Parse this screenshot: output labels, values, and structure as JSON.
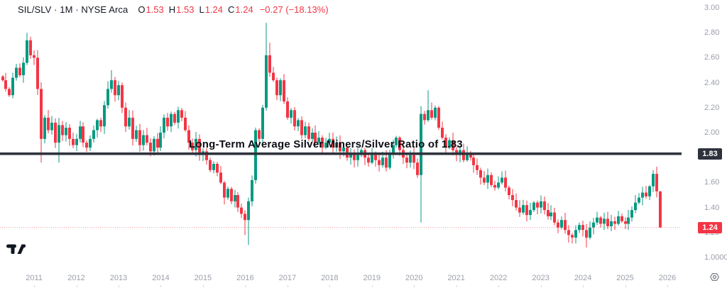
{
  "header": {
    "title": "SIL/SLV · 1M · NYSE Arca",
    "ohlc": {
      "o_label": "O",
      "o": "1.53",
      "h_label": "H",
      "h": "1.53",
      "l_label": "L",
      "l": "1.24",
      "c_label": "C",
      "c": "1.24",
      "change": "−0.27 (−18.13%)"
    }
  },
  "annotation": {
    "text": "Long-Term Average Silver Miners/Silver Ratio of 1.83"
  },
  "price_labels": {
    "average": {
      "value": "1.83",
      "color": "#2e323c"
    },
    "last": {
      "value": "1.24",
      "color": "#f23645"
    }
  },
  "axes": {
    "y_ticks": [
      {
        "v": 3.0,
        "label": "3.00"
      },
      {
        "v": 2.8,
        "label": "2.80"
      },
      {
        "v": 2.6,
        "label": "2.60"
      },
      {
        "v": 2.4,
        "label": "2.40"
      },
      {
        "v": 2.2,
        "label": "2.20"
      },
      {
        "v": 2.0,
        "label": "2.00"
      },
      {
        "v": 1.8,
        "label": "1.80"
      },
      {
        "v": 1.6,
        "label": "1.60"
      },
      {
        "v": 1.4,
        "label": "1.40"
      },
      {
        "v": 1.2,
        "label": "1.20"
      },
      {
        "v": 1.0,
        "label": "1.0000"
      }
    ],
    "x_ticks": [
      "2011",
      "2012",
      "2013",
      "2014",
      "2015",
      "2016",
      "2017",
      "2018",
      "2019",
      "2020",
      "2021",
      "2022",
      "2023",
      "2024",
      "2025",
      "2026"
    ]
  },
  "icons": {
    "logo": "tradingview-logo",
    "gear": "price-scale-settings"
  },
  "chart_data": {
    "type": "candlestick",
    "symbol": "SIL/SLV",
    "interval": "1M",
    "exchange": "NYSE Arca",
    "start_month": "2010-04",
    "months_per_candle": 1,
    "first_open": 2.45,
    "closes": [
      2.42,
      2.35,
      2.3,
      2.44,
      2.52,
      2.46,
      2.56,
      2.74,
      2.62,
      2.6,
      2.35,
      1.95,
      2.12,
      2.02,
      2.08,
      1.92,
      2.06,
      1.98,
      2.04,
      1.95,
      1.9,
      1.95,
      2.05,
      1.92,
      1.88,
      1.95,
      2.02,
      2.1,
      2.05,
      2.22,
      2.35,
      2.42,
      2.3,
      2.38,
      2.2,
      2.05,
      2.12,
      1.95,
      2.02,
      1.9,
      1.98,
      1.92,
      1.85,
      1.95,
      1.88,
      2.0,
      2.12,
      2.05,
      2.15,
      2.08,
      2.18,
      2.12,
      2.02,
      1.92,
      1.86,
      1.95,
      1.82,
      1.85,
      1.78,
      1.7,
      1.75,
      1.68,
      1.6,
      1.48,
      1.55,
      1.45,
      1.5,
      1.4,
      1.35,
      1.3,
      1.45,
      1.62,
      2.02,
      1.95,
      2.2,
      2.62,
      2.48,
      2.42,
      2.3,
      2.42,
      2.25,
      2.12,
      2.18,
      2.05,
      2.1,
      1.98,
      2.05,
      1.95,
      2.0,
      1.92,
      1.96,
      1.88,
      1.92,
      1.95,
      1.88,
      1.92,
      1.85,
      1.88,
      1.8,
      1.84,
      1.78,
      1.82,
      1.86,
      1.8,
      1.76,
      1.82,
      1.78,
      1.74,
      1.8,
      1.72,
      1.84,
      1.9,
      1.96,
      1.86,
      1.8,
      1.76,
      1.82,
      1.76,
      1.66,
      2.15,
      2.1,
      2.18,
      2.12,
      2.2,
      2.04,
      1.96,
      1.88,
      1.94,
      1.86,
      1.82,
      1.86,
      1.78,
      1.84,
      1.8,
      1.74,
      1.7,
      1.64,
      1.6,
      1.66,
      1.58,
      1.56,
      1.6,
      1.64,
      1.56,
      1.5,
      1.46,
      1.4,
      1.36,
      1.42,
      1.34,
      1.38,
      1.44,
      1.4,
      1.45,
      1.38,
      1.33,
      1.36,
      1.28,
      1.24,
      1.3,
      1.22,
      1.18,
      1.16,
      1.22,
      1.26,
      1.22,
      1.16,
      1.24,
      1.28,
      1.32,
      1.27,
      1.31,
      1.25,
      1.29,
      1.27,
      1.33,
      1.29,
      1.27,
      1.32,
      1.38,
      1.44,
      1.48,
      1.52,
      1.49,
      1.57,
      1.67,
      1.53,
      1.24
    ],
    "open_overrides": {
      "187": 1.53
    },
    "high_overrides": {
      "7": 2.8,
      "31": 2.5,
      "75": 2.88,
      "76": 2.72,
      "121": 2.34,
      "185": 1.7,
      "187": 1.53
    },
    "low_overrides": {
      "11": 1.76,
      "16": 1.76,
      "69": 1.18,
      "70": 1.1,
      "119": 1.28,
      "161": 1.12,
      "166": 1.08,
      "187": 1.24
    },
    "avg_line": 1.83,
    "last_price": 1.24,
    "up_color": "#089981",
    "down_color": "#f23645",
    "avg_line_color": "#2e323c",
    "last_line_color": "#f23645",
    "ylim": [
      1.0,
      3.05
    ],
    "grid": false,
    "title": "Long-Term Average Silver Miners/Silver Ratio of 1.83"
  }
}
